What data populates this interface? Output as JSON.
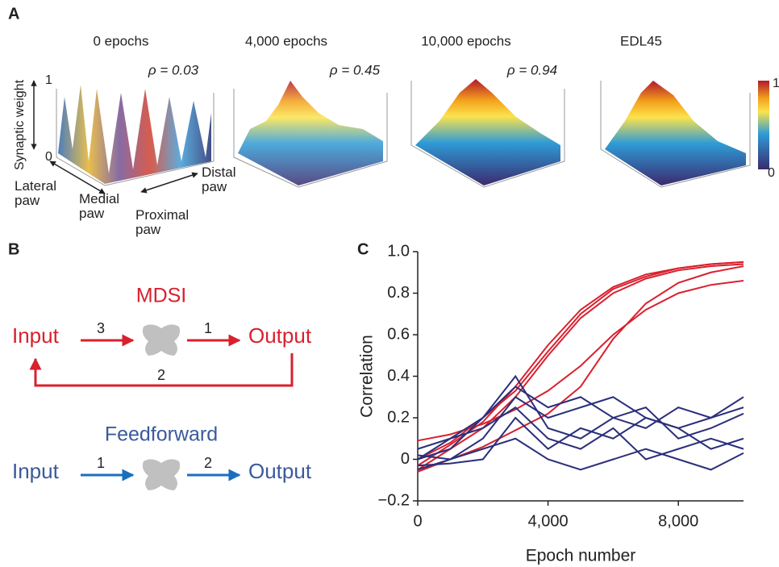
{
  "panel_a": {
    "label": "A",
    "plots": [
      {
        "title": "0 epochs",
        "rho": "ρ = 0.03"
      },
      {
        "title": "4,000 epochs",
        "rho": "ρ = 0.45"
      },
      {
        "title": "10,000 epochs",
        "rho": "ρ = 0.94"
      },
      {
        "title": "EDL45"
      }
    ],
    "y_axis_label": "Synaptic weight",
    "y_top": "1",
    "y_bottom": "0",
    "axis_labels": [
      "Lateral paw",
      "Medial paw",
      "Distal paw",
      "Proximal paw"
    ],
    "colorbar": {
      "top": "1",
      "bottom": "0"
    }
  },
  "panel_b": {
    "label": "B",
    "mdsi": {
      "title": "MDSI",
      "input": "Input",
      "output": "Output",
      "step_in": "3",
      "step_out": "1",
      "step_back": "2"
    },
    "feedforward": {
      "title": "Feedforward",
      "input": "Input",
      "output": "Output",
      "step_in": "1",
      "step_out": "2"
    }
  },
  "panel_c_label": "C",
  "chart_data": {
    "type": "line",
    "xlabel": "Epoch number",
    "ylabel": "Correlation",
    "x": [
      0,
      1000,
      2000,
      3000,
      4000,
      5000,
      6000,
      7000,
      8000,
      9000,
      10000
    ],
    "series": [
      {
        "color": "#d9202e",
        "values": [
          -0.05,
          0.05,
          0.15,
          0.3,
          0.5,
          0.68,
          0.8,
          0.87,
          0.91,
          0.93,
          0.94
        ]
      },
      {
        "color": "#d9202e",
        "values": [
          -0.03,
          0.07,
          0.18,
          0.35,
          0.55,
          0.72,
          0.83,
          0.89,
          0.92,
          0.94,
          0.95
        ]
      },
      {
        "color": "#d9202e",
        "values": [
          0.0,
          0.08,
          0.2,
          0.33,
          0.52,
          0.7,
          0.82,
          0.88,
          0.92,
          0.94,
          0.95
        ]
      },
      {
        "color": "#d9202e",
        "values": [
          0.09,
          0.12,
          0.17,
          0.24,
          0.33,
          0.45,
          0.6,
          0.72,
          0.8,
          0.84,
          0.86
        ]
      },
      {
        "color": "#d9202e",
        "values": [
          -0.06,
          0.0,
          0.06,
          0.14,
          0.22,
          0.35,
          0.58,
          0.75,
          0.85,
          0.9,
          0.93
        ]
      },
      {
        "color": "#2b2f7a",
        "values": [
          0.0,
          0.1,
          0.2,
          0.35,
          0.25,
          0.3,
          0.2,
          0.15,
          0.25,
          0.2,
          0.3
        ]
      },
      {
        "color": "#2b2f7a",
        "values": [
          0.05,
          0.1,
          0.15,
          0.25,
          0.1,
          0.05,
          0.15,
          0.0,
          0.05,
          0.1,
          0.05
        ]
      },
      {
        "color": "#2b2f7a",
        "values": [
          -0.05,
          0.0,
          0.1,
          0.3,
          0.2,
          0.25,
          0.3,
          0.2,
          0.15,
          0.2,
          0.25
        ]
      },
      {
        "color": "#2b2f7a",
        "values": [
          0.02,
          0.0,
          0.05,
          0.1,
          0.0,
          -0.05,
          0.0,
          0.05,
          0.0,
          -0.05,
          0.03
        ]
      },
      {
        "color": "#2b2f7a",
        "values": [
          0.0,
          0.05,
          0.2,
          0.4,
          0.15,
          0.1,
          0.2,
          0.25,
          0.1,
          0.15,
          0.22
        ]
      },
      {
        "color": "#2b2f7a",
        "values": [
          -0.03,
          -0.02,
          0.0,
          0.2,
          0.05,
          0.15,
          0.1,
          0.2,
          0.15,
          0.05,
          0.1
        ]
      }
    ],
    "xlim": [
      0,
      10000
    ],
    "ylim": [
      -0.2,
      1.0
    ],
    "xticks": [
      0,
      {
        "value": 4000,
        "label": "4,000"
      },
      {
        "value": 8000,
        "label": "8,000"
      }
    ],
    "yticks": [
      {
        "value": -0.2,
        "label": "−0.2"
      },
      0,
      0.2,
      0.4,
      0.6,
      0.8,
      {
        "value": 1.0,
        "label": "1.0"
      }
    ]
  }
}
